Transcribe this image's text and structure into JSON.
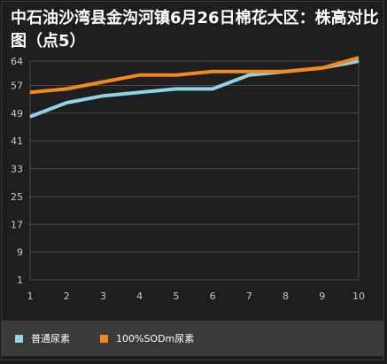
{
  "colors": {
    "series1": "#8fd3e8",
    "series2": "#f28a1a",
    "grid": "#4a4a4a",
    "plot_bg": "#1e1e1e",
    "axis_text": "#c8c8c8"
  },
  "chart_data": {
    "type": "line",
    "title": "中石油沙湾县金沟河镇6月26日棉花大区：株高对比图（点5）",
    "xlabel": "",
    "ylabel": "",
    "x": [
      1,
      2,
      3,
      4,
      5,
      6,
      7,
      8,
      9,
      10
    ],
    "yticks": [
      1,
      9,
      17,
      25,
      33,
      41,
      49,
      57,
      64
    ],
    "ylim": [
      1,
      64
    ],
    "grid": true,
    "legend_position": "bottom-left",
    "series": [
      {
        "name": "普通尿素",
        "values": [
          48,
          52,
          54,
          55,
          56,
          56,
          60,
          61,
          62,
          64
        ]
      },
      {
        "name": "100%SODm尿素",
        "values": [
          55,
          56,
          58,
          60,
          60,
          61,
          61,
          61,
          62,
          65
        ]
      }
    ]
  }
}
